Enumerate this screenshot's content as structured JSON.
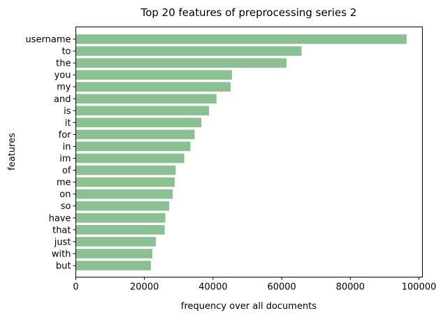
{
  "chart_data": {
    "type": "bar",
    "orientation": "horizontal",
    "title": "Top 20 features of preprocessing series 2",
    "xlabel": "frequency over all documents",
    "ylabel": "features",
    "categories": [
      "username",
      "to",
      "the",
      "you",
      "my",
      "and",
      "is",
      "it",
      "for",
      "in",
      "im",
      "of",
      "me",
      "on",
      "so",
      "have",
      "that",
      "just",
      "with",
      "but"
    ],
    "values": [
      96400,
      65800,
      61400,
      45500,
      45100,
      41000,
      38800,
      36600,
      34600,
      33400,
      31600,
      29100,
      28800,
      28200,
      27200,
      26100,
      25900,
      23300,
      22300,
      21900
    ],
    "xlim": [
      0,
      101000
    ],
    "xticks": [
      0,
      20000,
      40000,
      60000,
      80000,
      100000
    ],
    "xtick_labels": [
      "0",
      "20000",
      "40000",
      "60000",
      "80000",
      "100000"
    ],
    "bar_color": "#8bc092",
    "grid": false,
    "legend": "none"
  }
}
